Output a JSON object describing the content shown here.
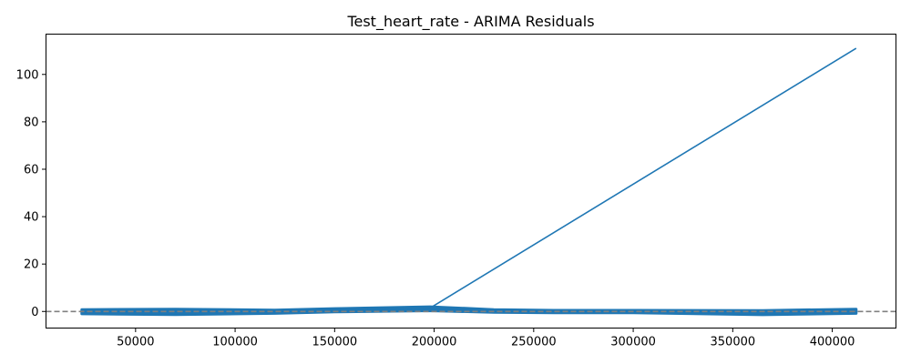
{
  "chart_data": {
    "type": "line",
    "title": "Test_heart_rate - ARIMA Residuals",
    "xlabel": "",
    "ylabel": "",
    "xlim": [
      5000,
      432000
    ],
    "ylim": [
      -7,
      117
    ],
    "xticks": [
      50000,
      100000,
      150000,
      200000,
      250000,
      300000,
      350000,
      400000
    ],
    "yticks": [
      0,
      20,
      40,
      60,
      80,
      100
    ],
    "grid": false,
    "reference_line": {
      "y": 0,
      "style": "dashed",
      "color": "#808080"
    },
    "series": [
      {
        "name": "residuals",
        "color": "#1f77b4",
        "band": {
          "x": [
            23000,
            70000,
            120000,
            150000,
            198000,
            230000,
            260000,
            300000,
            365000,
            412000
          ],
          "upper": [
            0.8,
            1.0,
            0.6,
            1.2,
            2.0,
            0.8,
            0.5,
            0.5,
            0.4,
            1.0
          ],
          "lower": [
            -1.0,
            -1.3,
            -0.8,
            -0.2,
            0.3,
            -0.4,
            -0.6,
            -0.6,
            -1.4,
            -0.8
          ]
        },
        "spike": {
          "x": [
            198000,
            412000
          ],
          "y": [
            1.5,
            111
          ]
        }
      }
    ]
  }
}
